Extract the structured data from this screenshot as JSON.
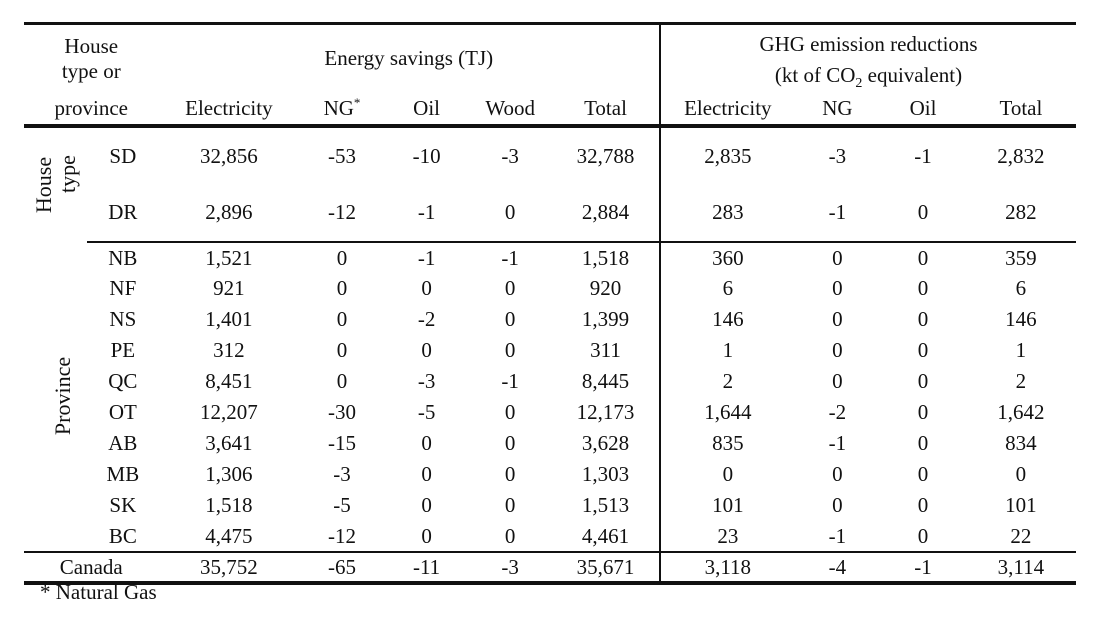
{
  "header": {
    "group_label": "House type or province",
    "group_label_line1": "House",
    "group_label_line2": "type or",
    "group_label_line3": "province",
    "energy_title": "Energy savings (TJ)",
    "ghg_title_line1": "GHG emission reductions",
    "ghg_title_line2_pre": "(kt of CO",
    "ghg_title_sub": "2",
    "ghg_title_line2_post": " equivalent)",
    "energy_cols": [
      "Electricity",
      "NG",
      "Oil",
      "Wood",
      "Total"
    ],
    "ng_marker": "*",
    "ghg_cols": [
      "Electricity",
      "NG",
      "Oil",
      "Total"
    ]
  },
  "groups": {
    "house_type_line1": "House",
    "house_type_line2": "type",
    "province": "Province"
  },
  "house_type_rows": [
    {
      "code": "SD",
      "values": [
        "32,856",
        "-53",
        "-10",
        "-3",
        "32,788",
        "2,835",
        "-3",
        "-1",
        "2,832"
      ]
    },
    {
      "code": "DR",
      "values": [
        "2,896",
        "-12",
        "-1",
        "0",
        "2,884",
        "283",
        "-1",
        "0",
        "282"
      ]
    }
  ],
  "province_rows": [
    {
      "code": "NB",
      "values": [
        "1,521",
        "0",
        "-1",
        "-1",
        "1,518",
        "360",
        "0",
        "0",
        "359"
      ]
    },
    {
      "code": "NF",
      "values": [
        "921",
        "0",
        "0",
        "0",
        "920",
        "6",
        "0",
        "0",
        "6"
      ]
    },
    {
      "code": "NS",
      "values": [
        "1,401",
        "0",
        "-2",
        "0",
        "1,399",
        "146",
        "0",
        "0",
        "146"
      ]
    },
    {
      "code": "PE",
      "values": [
        "312",
        "0",
        "0",
        "0",
        "311",
        "1",
        "0",
        "0",
        "1"
      ]
    },
    {
      "code": "QC",
      "values": [
        "8,451",
        "0",
        "-3",
        "-1",
        "8,445",
        "2",
        "0",
        "0",
        "2"
      ]
    },
    {
      "code": "OT",
      "values": [
        "12,207",
        "-30",
        "-5",
        "0",
        "12,173",
        "1,644",
        "-2",
        "0",
        "1,642"
      ]
    },
    {
      "code": "AB",
      "values": [
        "3,641",
        "-15",
        "0",
        "0",
        "3,628",
        "835",
        "-1",
        "0",
        "834"
      ]
    },
    {
      "code": "MB",
      "values": [
        "1,306",
        "-3",
        "0",
        "0",
        "1,303",
        "0",
        "0",
        "0",
        "0"
      ]
    },
    {
      "code": "SK",
      "values": [
        "1,518",
        "-5",
        "0",
        "0",
        "1,513",
        "101",
        "0",
        "0",
        "101"
      ]
    },
    {
      "code": "BC",
      "values": [
        "4,475",
        "-12",
        "0",
        "0",
        "4,461",
        "23",
        "-1",
        "0",
        "22"
      ]
    }
  ],
  "total_row": {
    "label": "Canada",
    "values": [
      "35,752",
      "-65",
      "-11",
      "-3",
      "35,671",
      "3,118",
      "-4",
      "-1",
      "3,114"
    ]
  },
  "footnote": "* Natural Gas"
}
